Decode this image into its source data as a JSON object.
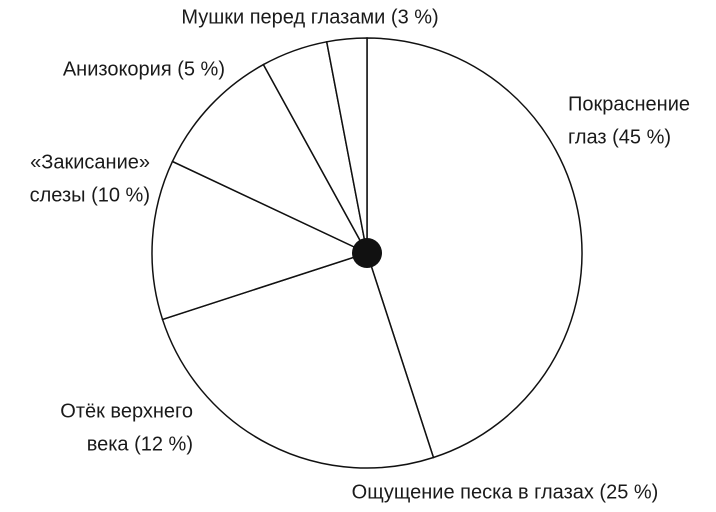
{
  "chart_data": {
    "type": "pie",
    "categories": [
      [
        "Покраснение",
        "глаз (45 %)"
      ],
      [
        "Ощущение песка в глазах (25 %)"
      ],
      [
        "Отёк верхнего",
        "века (12 %)"
      ],
      [
        "«Закисание»",
        "слезы (10 %)"
      ],
      [
        "Анизокория (5 %)"
      ],
      [
        "Мушки перед глазами (3 %)"
      ]
    ],
    "values": [
      45,
      25,
      12,
      10,
      5,
      3
    ],
    "color": "#ffffff"
  }
}
